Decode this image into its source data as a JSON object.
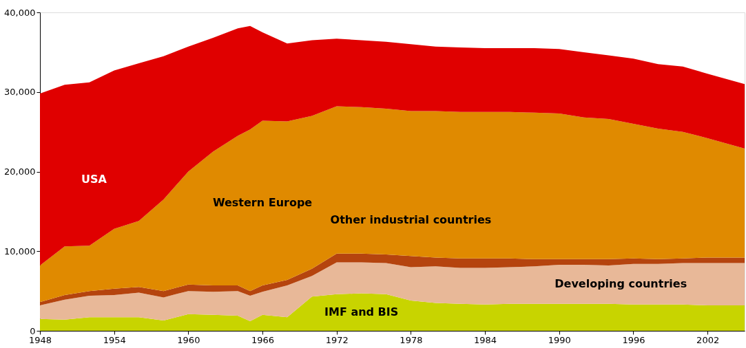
{
  "chart_data": {
    "type": "area",
    "stacked": true,
    "x": [
      1948,
      1950,
      1952,
      1954,
      1956,
      1958,
      1960,
      1962,
      1964,
      1965,
      1966,
      1968,
      1970,
      1972,
      1974,
      1976,
      1978,
      1980,
      1982,
      1984,
      1986,
      1988,
      1990,
      1992,
      1994,
      1996,
      1998,
      2000,
      2002,
      2005
    ],
    "series": [
      {
        "name": "IMF and BIS",
        "color": "#c8d400",
        "values": [
          1500,
          1400,
          1700,
          1700,
          1700,
          1300,
          2100,
          2000,
          1900,
          1200,
          2000,
          1700,
          4300,
          4600,
          4700,
          4600,
          3800,
          3500,
          3400,
          3300,
          3400,
          3400,
          3400,
          3400,
          3400,
          3300,
          3300,
          3300,
          3200,
          3200
        ]
      },
      {
        "name": "Developing countries",
        "color": "#e8b898",
        "values": [
          1700,
          2500,
          2700,
          2800,
          3100,
          2900,
          2900,
          2900,
          3100,
          3200,
          2900,
          4000,
          2600,
          4000,
          3900,
          3900,
          4200,
          4600,
          4500,
          4600,
          4600,
          4700,
          4900,
          4900,
          4800,
          5100,
          5100,
          5200,
          5300,
          5300
        ]
      },
      {
        "name": "Other industrial countries",
        "color": "#b5440e",
        "values": [
          400,
          600,
          600,
          800,
          700,
          800,
          800,
          800,
          700,
          600,
          800,
          700,
          900,
          1100,
          1100,
          1100,
          1400,
          1100,
          1200,
          1200,
          1100,
          900,
          700,
          700,
          800,
          700,
          600,
          600,
          700,
          700
        ]
      },
      {
        "name": "Western Europe",
        "color": "#e08a00",
        "values": [
          4600,
          6100,
          5700,
          7500,
          8300,
          11500,
          14200,
          16800,
          18800,
          20300,
          20700,
          19900,
          19200,
          18500,
          18400,
          18300,
          18200,
          18400,
          18400,
          18400,
          18400,
          18400,
          18300,
          17800,
          17600,
          16900,
          16400,
          15900,
          15000,
          13700
        ]
      },
      {
        "name": "USA",
        "color": "#e00000",
        "values": [
          21600,
          20300,
          20500,
          19900,
          19800,
          18000,
          15700,
          14300,
          13500,
          13000,
          11100,
          9800,
          9500,
          8500,
          8400,
          8400,
          8400,
          8100,
          8100,
          8000,
          8000,
          8100,
          8100,
          8200,
          8000,
          8200,
          8100,
          8200,
          8100,
          8100
        ]
      }
    ],
    "xlim": [
      1948,
      2005
    ],
    "xticks": [
      1948,
      1954,
      1960,
      1966,
      1972,
      1978,
      1984,
      1990,
      1996,
      2002
    ],
    "ylim": [
      0,
      40000
    ],
    "yticks": [
      0,
      {
        "value": 10000,
        "label": "10,000"
      },
      {
        "value": 20000,
        "label": "20,000"
      },
      {
        "value": 30000,
        "label": "30,000"
      },
      {
        "value": 40000,
        "label": "40,000"
      }
    ],
    "grid": false
  }
}
